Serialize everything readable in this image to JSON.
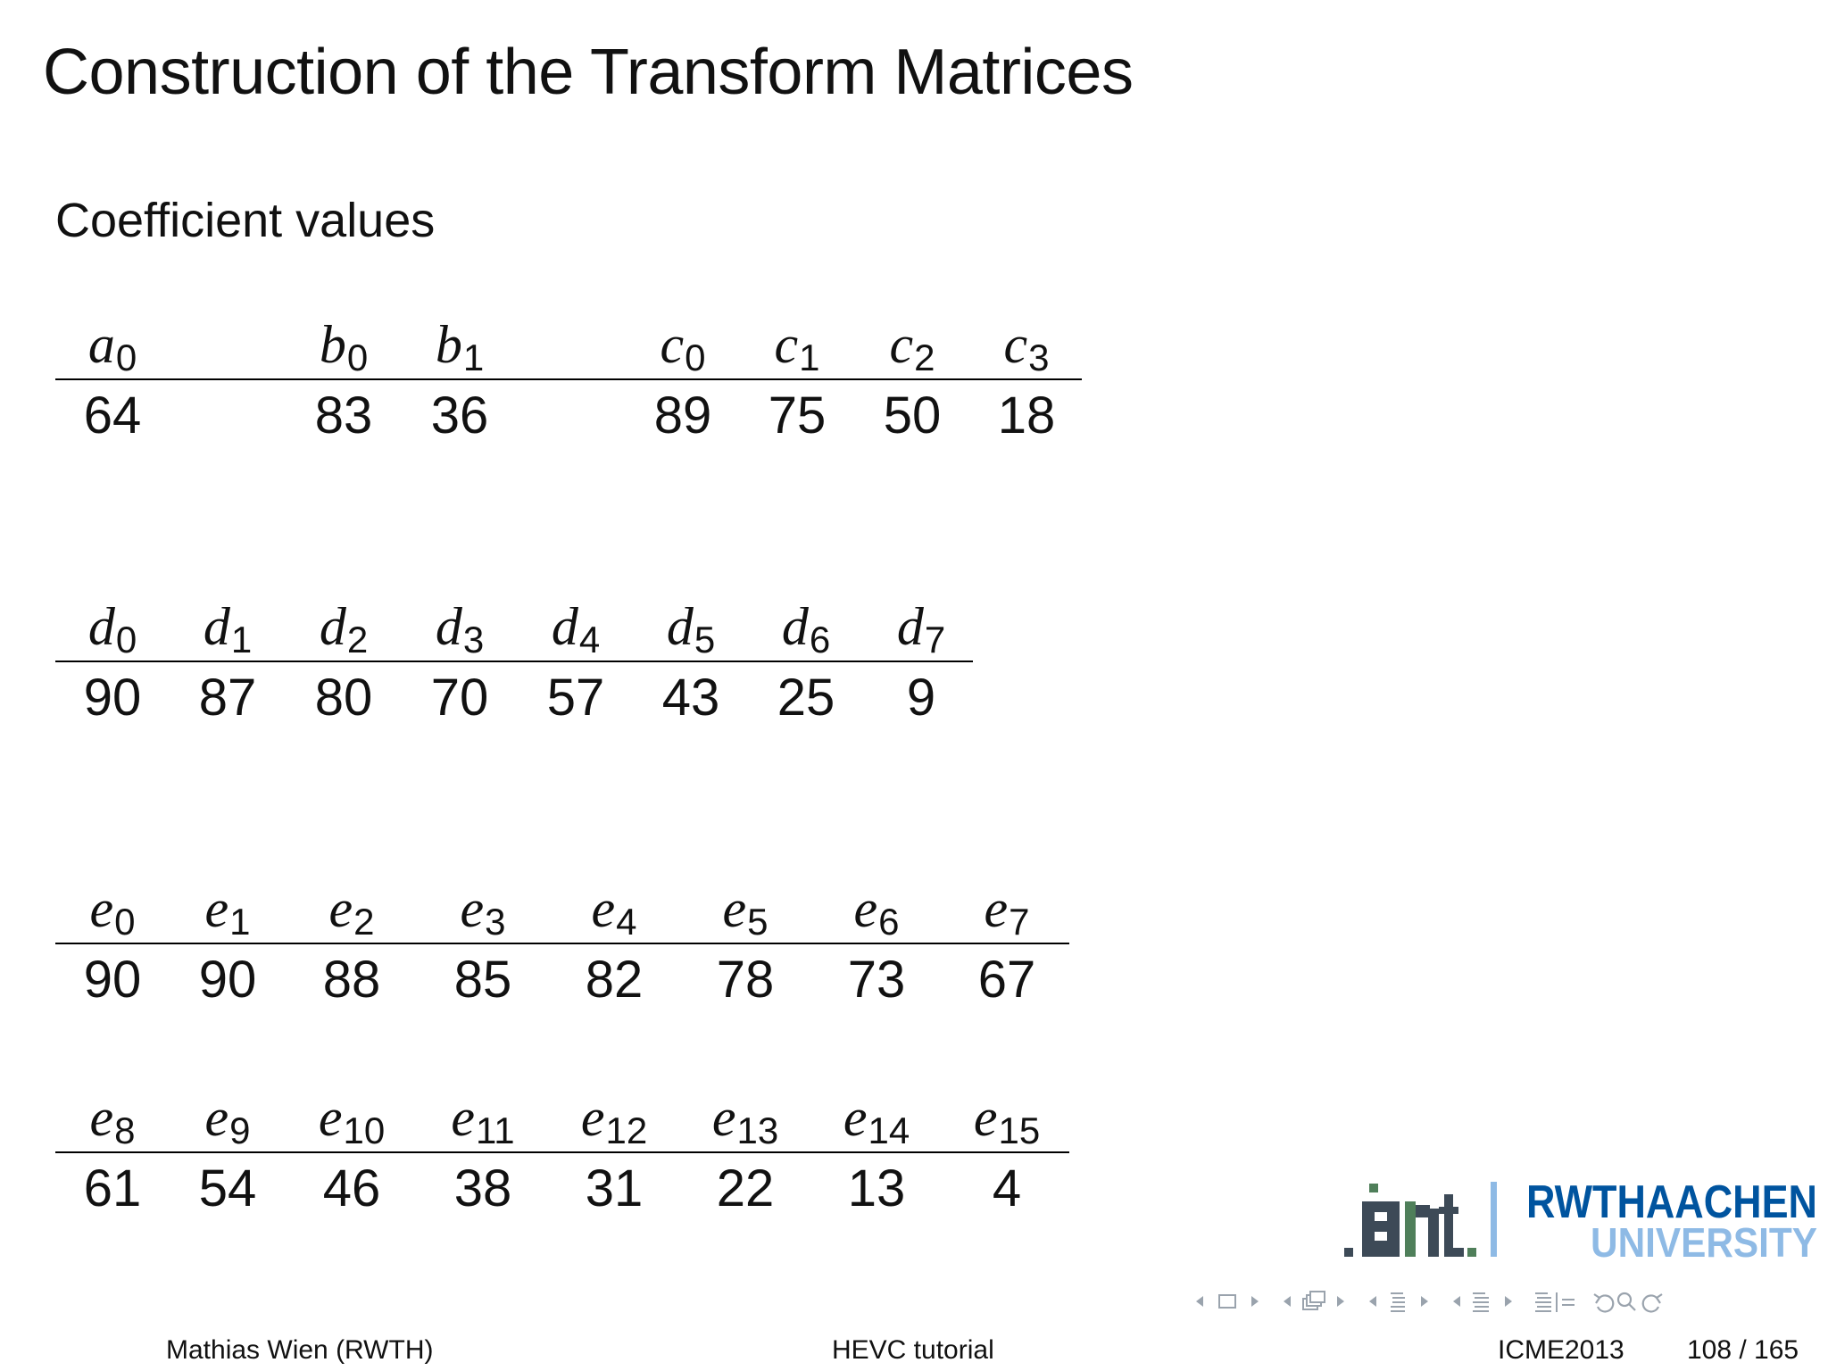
{
  "slide": {
    "title": "Construction of the Transform Matrices",
    "subtitle": "Coefficient values"
  },
  "tables": {
    "abc": {
      "cols": [
        {
          "sym": "a",
          "idx": "0",
          "value": "64"
        },
        {
          "sym": "b",
          "idx": "0",
          "value": "83"
        },
        {
          "sym": "b",
          "idx": "1",
          "value": "36"
        },
        {
          "sym": "c",
          "idx": "0",
          "value": "89"
        },
        {
          "sym": "c",
          "idx": "1",
          "value": "75"
        },
        {
          "sym": "c",
          "idx": "2",
          "value": "50"
        },
        {
          "sym": "c",
          "idx": "3",
          "value": "18"
        }
      ]
    },
    "d": {
      "cols": [
        {
          "sym": "d",
          "idx": "0",
          "value": "90"
        },
        {
          "sym": "d",
          "idx": "1",
          "value": "87"
        },
        {
          "sym": "d",
          "idx": "2",
          "value": "80"
        },
        {
          "sym": "d",
          "idx": "3",
          "value": "70"
        },
        {
          "sym": "d",
          "idx": "4",
          "value": "57"
        },
        {
          "sym": "d",
          "idx": "5",
          "value": "43"
        },
        {
          "sym": "d",
          "idx": "6",
          "value": "25"
        },
        {
          "sym": "d",
          "idx": "7",
          "value": "9"
        }
      ]
    },
    "e_low": {
      "cols": [
        {
          "sym": "e",
          "idx": "0",
          "value": "90"
        },
        {
          "sym": "e",
          "idx": "1",
          "value": "90"
        },
        {
          "sym": "e",
          "idx": "2",
          "value": "88"
        },
        {
          "sym": "e",
          "idx": "3",
          "value": "85"
        },
        {
          "sym": "e",
          "idx": "4",
          "value": "82"
        },
        {
          "sym": "e",
          "idx": "5",
          "value": "78"
        },
        {
          "sym": "e",
          "idx": "6",
          "value": "73"
        },
        {
          "sym": "e",
          "idx": "7",
          "value": "67"
        }
      ]
    },
    "e_high": {
      "cols": [
        {
          "sym": "e",
          "idx": "8",
          "value": "61"
        },
        {
          "sym": "e",
          "idx": "9",
          "value": "54"
        },
        {
          "sym": "e",
          "idx": "10",
          "value": "46"
        },
        {
          "sym": "e",
          "idx": "11",
          "value": "38"
        },
        {
          "sym": "e",
          "idx": "12",
          "value": "31"
        },
        {
          "sym": "e",
          "idx": "13",
          "value": "22"
        },
        {
          "sym": "e",
          "idx": "14",
          "value": "13"
        },
        {
          "sym": "e",
          "idx": "15",
          "value": "4"
        }
      ]
    }
  },
  "logo": {
    "institute": ".ient.",
    "university_line1": "RWTHAACHEN",
    "university_line2": "UNIVERSITY",
    "colors": {
      "dark": "#3d4a57",
      "green": "#4f7f5a",
      "blue": "#00549f",
      "light_blue": "#8ebae5"
    }
  },
  "footer": {
    "author": "Mathias Wien  (RWTH)",
    "talk": "HEVC tutorial",
    "event": "ICME2013",
    "page": "108 / 165"
  },
  "navigation": {
    "icons": [
      "prev-frame-icon",
      "frame-icon",
      "next-frame-icon",
      "prev-slide-icon",
      "slides-icon",
      "next-slide-icon",
      "prev-subsection-icon",
      "subsection-icon",
      "next-subsection-icon",
      "prev-section-icon",
      "section-icon",
      "next-section-icon",
      "toc-icon",
      "back-icon",
      "search-icon",
      "forward-icon"
    ],
    "color": "#9aa3ad"
  }
}
